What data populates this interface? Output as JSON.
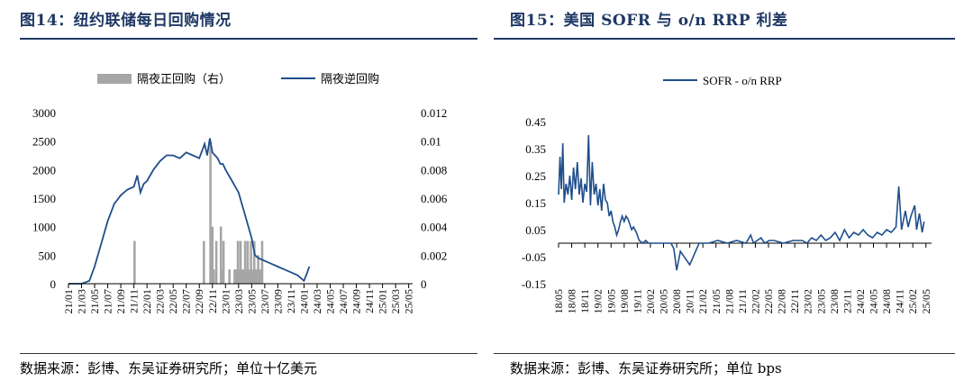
{
  "left_panel": {
    "title": "图14：纽约联储每日回购情况",
    "source": "数据来源：彭博、东吴证券研究所；单位十亿美元"
  },
  "right_panel": {
    "title": "图15：美国 SOFR 与 o/n RRP 利差",
    "source": "数据来源：彭博、东吴证券研究所；单位 bps"
  },
  "colors": {
    "line": "#1f4e8c",
    "bar": "#a6a6a6",
    "title": "#1f3864"
  },
  "chart_data": [
    {
      "type": "bar+line",
      "title": "",
      "legend_position": "top",
      "grid": false,
      "categories": [
        "21/01",
        "21/03",
        "21/05",
        "21/07",
        "21/09",
        "21/11",
        "22/01",
        "22/03",
        "22/05",
        "22/07",
        "22/09",
        "22/11",
        "23/01",
        "23/03",
        "23/05",
        "23/07",
        "23/09",
        "23/11",
        "24/01",
        "24/03",
        "24/05",
        "24/07",
        "24/09",
        "24/11",
        "25/01",
        "25/03",
        "25/05"
      ],
      "y_left": {
        "ticks": [
          0,
          500,
          1000,
          1500,
          2000,
          2500,
          3000
        ],
        "range": [
          0,
          3000
        ]
      },
      "y_right": {
        "ticks": [
          "0",
          "0.002",
          "0.004",
          "0.006",
          "0.008",
          "0.01",
          "0.012"
        ],
        "range": [
          0,
          0.012
        ]
      },
      "series": [
        {
          "name": "隔夜正回购（右）",
          "kind": "bar",
          "axis": "right",
          "x": [
            10.1,
            20.7,
            21.7,
            22.0,
            22.2,
            22.6,
            23.3,
            23.4,
            23.7,
            24.6,
            25.4,
            25.6,
            25.9,
            26.1,
            26.3,
            26.6,
            26.8,
            27.0,
            27.2,
            27.4,
            27.6,
            27.9,
            28.1,
            28.4,
            28.7,
            29.0,
            29.3,
            29.6
          ],
          "values": [
            0.003,
            0.003,
            0.01,
            0.004,
            0.001,
            0.003,
            0.004,
            0.001,
            0.003,
            0.001,
            0.001,
            0.001,
            0.003,
            0.001,
            0.003,
            0.001,
            0.001,
            0.003,
            0.001,
            0.003,
            0.001,
            0.003,
            0.001,
            0.003,
            0.001,
            0.002,
            0.001,
            0.003
          ]
        },
        {
          "name": "隔夜逆回购",
          "kind": "line",
          "axis": "left",
          "x": [
            0,
            2,
            3.2,
            4,
            5,
            6,
            7,
            8,
            9,
            10,
            10.5,
            11,
            11.5,
            12,
            13,
            14,
            15,
            16,
            17,
            18,
            19,
            20,
            20.8,
            21.2,
            21.6,
            22,
            22.4,
            22.8,
            23.2,
            23.6,
            24,
            25,
            26,
            27,
            28,
            28.5,
            29,
            30,
            31,
            32,
            33,
            34,
            35,
            35.5,
            36,
            36.5,
            36.8
          ],
          "values": [
            0,
            0,
            50,
            300,
            700,
            1100,
            1400,
            1550,
            1650,
            1700,
            1900,
            1600,
            1750,
            1800,
            2000,
            2150,
            2250,
            2250,
            2200,
            2300,
            2250,
            2200,
            2450,
            2250,
            2550,
            2300,
            2250,
            2200,
            2100,
            2100,
            2000,
            1800,
            1600,
            1200,
            800,
            500,
            450,
            400,
            350,
            300,
            250,
            200,
            150,
            100,
            50,
            200,
            300
          ]
        }
      ]
    },
    {
      "type": "line",
      "title": "",
      "legend_position": "top",
      "grid": false,
      "categories": [
        "18/05",
        "18/08",
        "18/11",
        "19/02",
        "19/05",
        "19/08",
        "19/11",
        "20/02",
        "20/05",
        "20/08",
        "20/11",
        "21/02",
        "21/05",
        "21/08",
        "21/11",
        "22/02",
        "22/05",
        "22/08",
        "22/11",
        "23/02",
        "23/05",
        "23/08",
        "23/11",
        "24/02",
        "24/05",
        "24/08",
        "24/11",
        "25/02",
        "25/05"
      ],
      "y": {
        "ticks": [
          "-0.15",
          "-0.05",
          "0.05",
          "0.15",
          "0.25",
          "0.35",
          "0.45"
        ],
        "range": [
          -0.15,
          0.45
        ]
      },
      "series": [
        {
          "name": "SOFR - o/n RRP",
          "kind": "line",
          "x": [
            0,
            0.15,
            0.3,
            0.45,
            0.6,
            0.8,
            1.0,
            1.2,
            1.4,
            1.6,
            1.8,
            2.0,
            2.2,
            2.4,
            2.6,
            2.8,
            3.0,
            3.2,
            3.4,
            3.6,
            3.8,
            4.0,
            4.2,
            4.4,
            4.6,
            4.8,
            5.0,
            5.2,
            5.4,
            5.6,
            5.8,
            6.0,
            6.2,
            6.4,
            6.6,
            6.8,
            7.0,
            7.2,
            7.4,
            7.6,
            7.8,
            8.0,
            8.3,
            8.6,
            9.0,
            9.3,
            9.6,
            10.0,
            10.3,
            10.6,
            11.0,
            11.3,
            11.6,
            12.0,
            12.3,
            12.6,
            13.0,
            14,
            15,
            16,
            17,
            18,
            19,
            20,
            20.5,
            20.8,
            21.2,
            21.6,
            22.0,
            22.5,
            23,
            24,
            25,
            26,
            26.5,
            27,
            27.5,
            28,
            28.5,
            29,
            29.5,
            30,
            30.5,
            31,
            31.5,
            32,
            32.5,
            33,
            33.5,
            34,
            34.5,
            35,
            35.5,
            36,
            36.3,
            36.6,
            37.0,
            37.3,
            37.6,
            38.0,
            38.2,
            38.5,
            38.8,
            39.0
          ],
          "values": [
            0.18,
            0.32,
            0.2,
            0.37,
            0.15,
            0.22,
            0.18,
            0.25,
            0.16,
            0.28,
            0.2,
            0.3,
            0.18,
            0.24,
            0.15,
            0.22,
            0.19,
            0.4,
            0.14,
            0.3,
            0.18,
            0.22,
            0.14,
            0.2,
            0.12,
            0.22,
            0.16,
            0.15,
            0.1,
            0.12,
            0.08,
            0.06,
            0.03,
            0.05,
            0.08,
            0.1,
            0.08,
            0.1,
            0.09,
            0.07,
            0.05,
            0.06,
            0.04,
            0.01,
            0.0,
            0.01,
            0.0,
            0.0,
            0.0,
            0.0,
            0.0,
            0.0,
            0.0,
            0.0,
            -0.02,
            -0.1,
            -0.03,
            -0.08,
            0.0,
            0.0,
            0.01,
            0.0,
            0.01,
            0.0,
            0.03,
            0.0,
            0.01,
            0.02,
            0.0,
            0.01,
            0.01,
            0.0,
            0.01,
            0.01,
            0.0,
            0.02,
            0.01,
            0.03,
            0.01,
            0.02,
            0.04,
            0.01,
            0.05,
            0.02,
            0.04,
            0.03,
            0.05,
            0.03,
            0.02,
            0.04,
            0.03,
            0.05,
            0.04,
            0.06,
            0.21,
            0.05,
            0.12,
            0.06,
            0.1,
            0.14,
            0.05,
            0.11,
            0.04,
            0.08
          ]
        }
      ]
    }
  ]
}
